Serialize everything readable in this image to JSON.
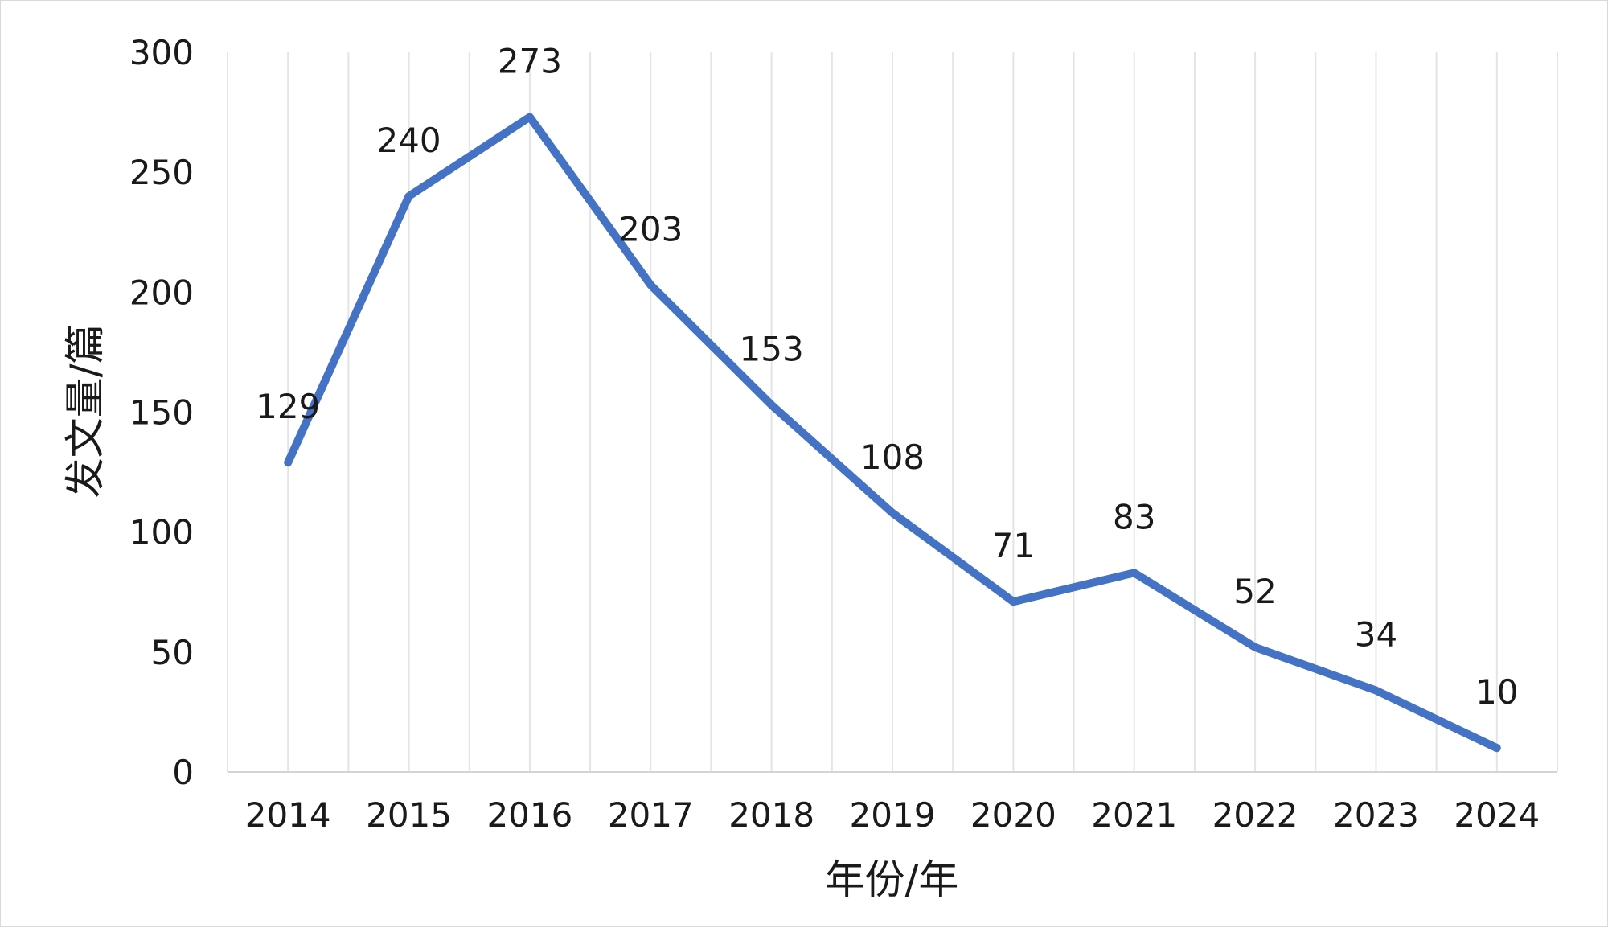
{
  "chart_data": {
    "type": "line",
    "categories": [
      "2014",
      "2015",
      "2016",
      "2017",
      "2018",
      "2019",
      "2020",
      "2021",
      "2022",
      "2023",
      "2024"
    ],
    "series": [
      {
        "values": [
          129,
          240,
          273,
          203,
          153,
          108,
          71,
          83,
          52,
          34,
          10
        ],
        "color": "#4472c4"
      }
    ],
    "xlabel": "年份/年",
    "ylabel": "发文量/篇",
    "ylim": [
      0,
      300
    ],
    "yticks": [
      0,
      50,
      100,
      150,
      200,
      250,
      300
    ],
    "data_labels": true,
    "grid": "vertical",
    "legend": "none"
  }
}
